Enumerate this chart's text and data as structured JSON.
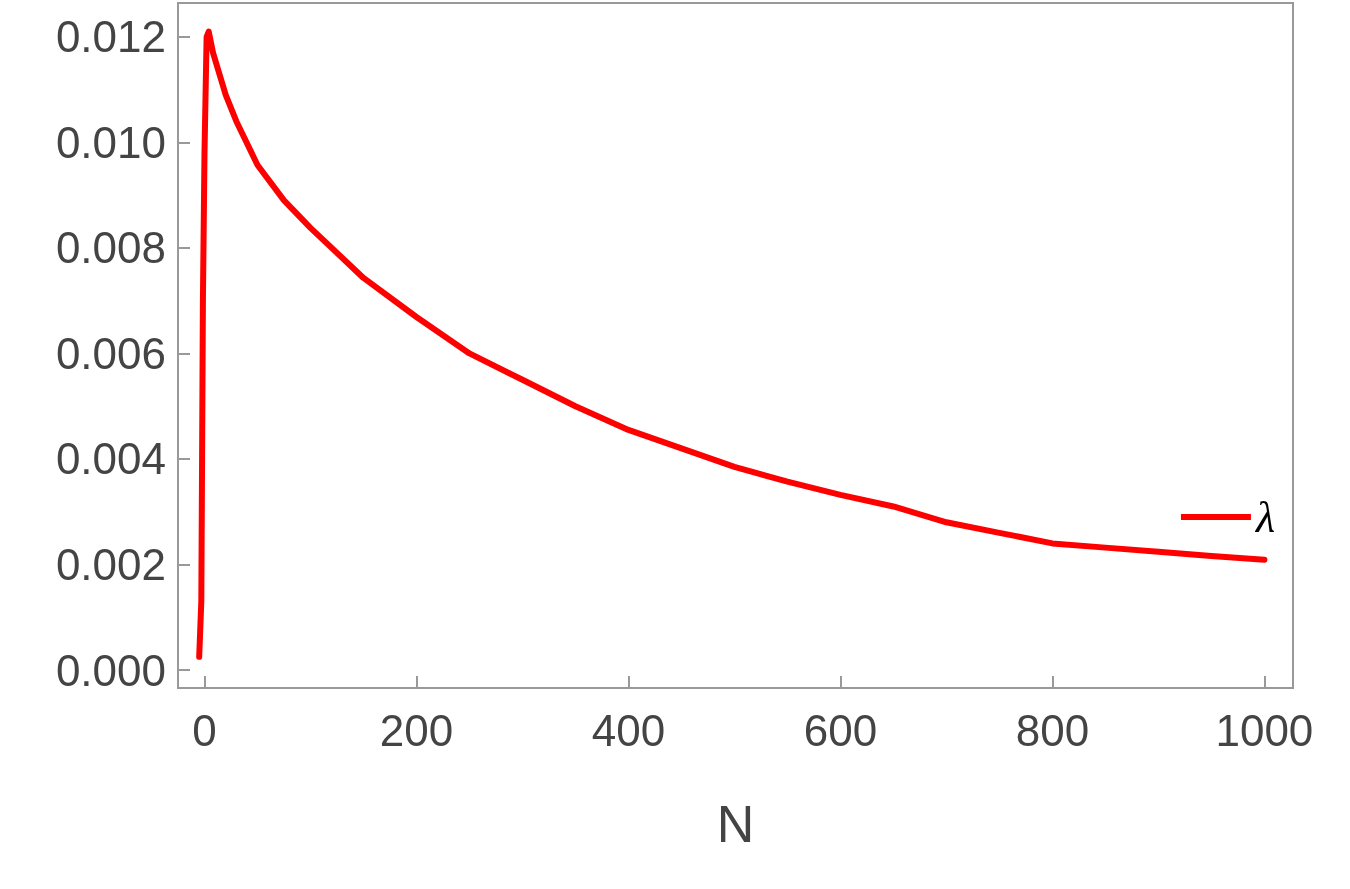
{
  "chart_data": {
    "type": "line",
    "xlabel": "N",
    "legend": "right",
    "series": [
      {
        "name": "λ",
        "color": "#ff0000",
        "x": [
          -5,
          -3,
          -1.5,
          0,
          2,
          4,
          8,
          20,
          30,
          50,
          75,
          100,
          150,
          200,
          250,
          300,
          350,
          400,
          450,
          500,
          550,
          600,
          650,
          700,
          750,
          800,
          850,
          900,
          950,
          1000
        ],
        "values": [
          0.00025,
          0.0013,
          0.007,
          0.0098,
          0.012,
          0.0121,
          0.0117,
          0.0109,
          0.0104,
          0.00957,
          0.0089,
          0.00838,
          0.00743,
          0.00669,
          0.006,
          0.0055,
          0.005,
          0.00455,
          0.0042,
          0.00385,
          0.00357,
          0.00332,
          0.0031,
          0.0028,
          0.0026,
          0.0024,
          0.00232,
          0.00224,
          0.00216,
          0.00209
        ]
      }
    ],
    "xlim": [
      -25,
      1027
    ],
    "xticks": [
      0,
      200,
      400,
      600,
      800,
      1000
    ],
    "ylim": [
      -0.00034,
      0.01264
    ],
    "yticks": [
      {
        "value": 0,
        "label": "0.000"
      },
      {
        "value": 0.002,
        "label": "0.002"
      },
      {
        "value": 0.004,
        "label": "0.004"
      },
      {
        "value": 0.006,
        "label": "0.006"
      },
      {
        "value": 0.008,
        "label": "0.008"
      },
      {
        "value": 0.01,
        "label": "0.010"
      },
      {
        "value": 0.012,
        "label": "0.012"
      }
    ],
    "grid": false,
    "marker": "none",
    "line_style": "solid"
  }
}
